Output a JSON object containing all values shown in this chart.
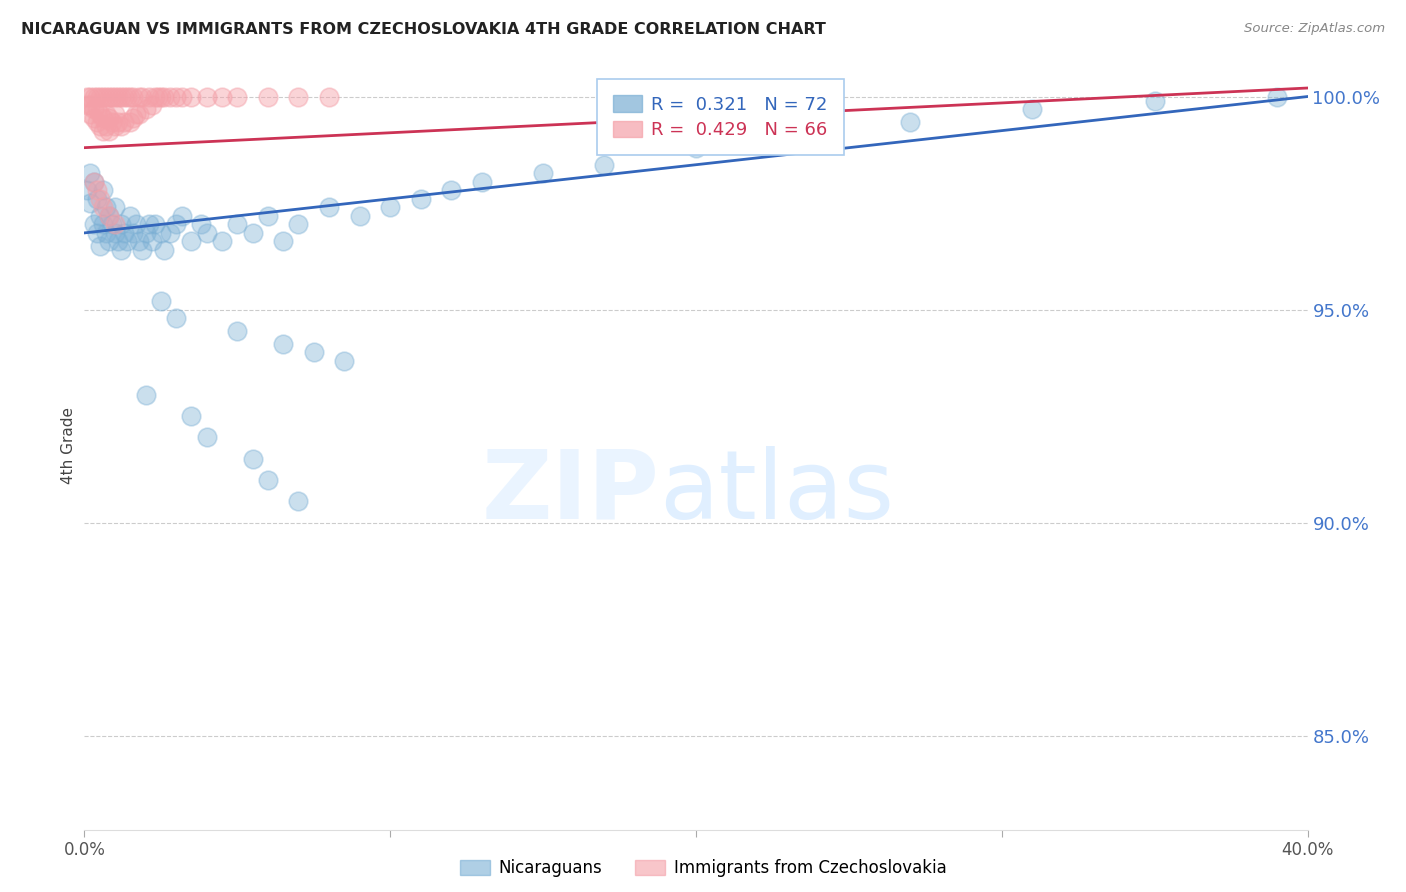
{
  "title": "NICARAGUAN VS IMMIGRANTS FROM CZECHOSLOVAKIA 4TH GRADE CORRELATION CHART",
  "source": "Source: ZipAtlas.com",
  "ylabel": "4th Grade",
  "y_ticks": [
    0.85,
    0.9,
    0.95,
    1.0
  ],
  "y_tick_labels": [
    "85.0%",
    "90.0%",
    "95.0%",
    "100.0%"
  ],
  "x_range": [
    0.0,
    0.4
  ],
  "y_range": [
    0.828,
    1.008
  ],
  "blue_color": "#7BAFD4",
  "pink_color": "#F4A0A8",
  "blue_line_color": "#3366BB",
  "pink_line_color": "#CC3355",
  "blue_label": "Nicaraguans",
  "pink_label": "Immigrants from Czechoslovakia",
  "R_blue": "0.321",
  "N_blue": "72",
  "R_pink": "0.429",
  "N_pink": "66",
  "blue_scatter_x": [
    0.001,
    0.002,
    0.002,
    0.003,
    0.003,
    0.004,
    0.004,
    0.005,
    0.005,
    0.006,
    0.006,
    0.007,
    0.007,
    0.008,
    0.008,
    0.009,
    0.01,
    0.01,
    0.011,
    0.012,
    0.012,
    0.013,
    0.014,
    0.015,
    0.016,
    0.017,
    0.018,
    0.019,
    0.02,
    0.021,
    0.022,
    0.023,
    0.025,
    0.026,
    0.028,
    0.03,
    0.032,
    0.035,
    0.038,
    0.04,
    0.045,
    0.05,
    0.055,
    0.06,
    0.065,
    0.07,
    0.08,
    0.09,
    0.1,
    0.11,
    0.12,
    0.13,
    0.15,
    0.17,
    0.2,
    0.23,
    0.27,
    0.31,
    0.35,
    0.39,
    0.025,
    0.03,
    0.05,
    0.065,
    0.075,
    0.085,
    0.02,
    0.035,
    0.04,
    0.055,
    0.06,
    0.07
  ],
  "blue_scatter_y": [
    0.978,
    0.975,
    0.982,
    0.97,
    0.98,
    0.968,
    0.976,
    0.972,
    0.965,
    0.97,
    0.978,
    0.968,
    0.974,
    0.966,
    0.972,
    0.97,
    0.968,
    0.974,
    0.966,
    0.97,
    0.964,
    0.968,
    0.966,
    0.972,
    0.968,
    0.97,
    0.966,
    0.964,
    0.968,
    0.97,
    0.966,
    0.97,
    0.968,
    0.964,
    0.968,
    0.97,
    0.972,
    0.966,
    0.97,
    0.968,
    0.966,
    0.97,
    0.968,
    0.972,
    0.966,
    0.97,
    0.974,
    0.972,
    0.974,
    0.976,
    0.978,
    0.98,
    0.982,
    0.984,
    0.988,
    0.99,
    0.994,
    0.997,
    0.999,
    1.0,
    0.952,
    0.948,
    0.945,
    0.942,
    0.94,
    0.938,
    0.93,
    0.925,
    0.92,
    0.915,
    0.91,
    0.905
  ],
  "pink_scatter_x": [
    0.001,
    0.001,
    0.002,
    0.002,
    0.002,
    0.003,
    0.003,
    0.003,
    0.004,
    0.004,
    0.004,
    0.005,
    0.005,
    0.005,
    0.006,
    0.006,
    0.006,
    0.007,
    0.007,
    0.007,
    0.008,
    0.008,
    0.008,
    0.009,
    0.009,
    0.01,
    0.01,
    0.01,
    0.011,
    0.011,
    0.012,
    0.012,
    0.013,
    0.013,
    0.014,
    0.015,
    0.015,
    0.016,
    0.016,
    0.017,
    0.018,
    0.018,
    0.019,
    0.02,
    0.021,
    0.022,
    0.023,
    0.024,
    0.025,
    0.026,
    0.028,
    0.03,
    0.032,
    0.035,
    0.04,
    0.045,
    0.05,
    0.06,
    0.07,
    0.08,
    0.003,
    0.004,
    0.005,
    0.006,
    0.008,
    0.01
  ],
  "pink_scatter_y": [
    0.998,
    1.0,
    0.996,
    0.998,
    1.0,
    0.995,
    0.997,
    1.0,
    0.994,
    0.997,
    1.0,
    0.993,
    0.996,
    1.0,
    0.992,
    0.995,
    1.0,
    0.993,
    0.996,
    1.0,
    0.992,
    0.995,
    1.0,
    0.994,
    1.0,
    0.993,
    0.996,
    1.0,
    0.994,
    1.0,
    0.993,
    1.0,
    0.994,
    1.0,
    1.0,
    0.994,
    1.0,
    0.995,
    1.0,
    0.996,
    0.996,
    1.0,
    1.0,
    0.997,
    1.0,
    0.998,
    1.0,
    1.0,
    1.0,
    1.0,
    1.0,
    1.0,
    1.0,
    1.0,
    1.0,
    1.0,
    1.0,
    1.0,
    1.0,
    1.0,
    0.98,
    0.978,
    0.976,
    0.974,
    0.972,
    0.97
  ]
}
